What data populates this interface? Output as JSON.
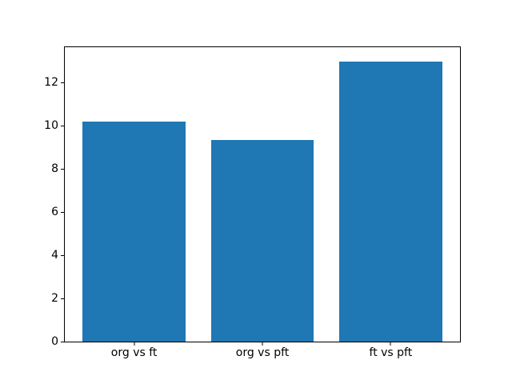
{
  "chart_data": {
    "type": "bar",
    "categories": [
      "org vs ft",
      "org vs pft",
      "ft vs pft"
    ],
    "values": [
      10.2,
      9.35,
      13.0
    ],
    "title": "",
    "xlabel": "",
    "ylabel": "",
    "ylim": [
      0,
      13.65
    ],
    "yticks": [
      0,
      2,
      4,
      6,
      8,
      10,
      12
    ],
    "bar_width_fraction": 0.8,
    "grid": false,
    "legend": "none",
    "bar_color": "#1f77b4",
    "axis_color": "#000000",
    "background_color": "#ffffff"
  }
}
